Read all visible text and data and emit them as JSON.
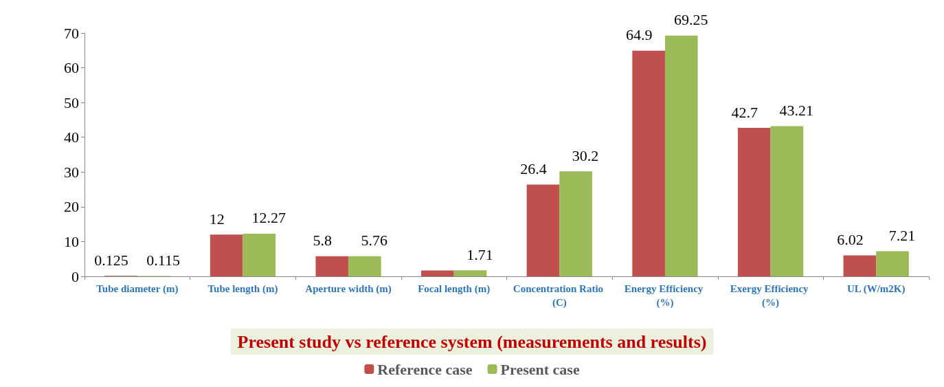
{
  "chart_data": {
    "type": "bar",
    "title": "Present study vs reference system (measurements and results)",
    "categories": [
      "Tube diameter (m)",
      "Tube length (m)",
      "Aperture width (m)",
      "Focal length (m)",
      "Concentration Ratio (C)",
      "Energy Efficiency (%)",
      "Exergy Efficiency (%)",
      "UL (W/m2K)"
    ],
    "series": [
      {
        "name": "Reference case",
        "color": "#c0504d",
        "values": [
          0.125,
          12,
          5.8,
          1.7,
          26.4,
          64.9,
          42.7,
          6.02
        ],
        "value_labels": [
          "0.125",
          "12",
          "5.8",
          null,
          "26.4",
          "64.9",
          "42.7",
          "6.02"
        ]
      },
      {
        "name": "Present case",
        "color": "#9bbb59",
        "values": [
          0.115,
          12.27,
          5.76,
          1.71,
          30.2,
          69.25,
          43.21,
          7.21
        ],
        "value_labels": [
          "0.115",
          "12.27",
          "5.76",
          "1.71",
          "30.2",
          "69.25",
          "43.21",
          "7.21"
        ]
      }
    ],
    "ylim": [
      0,
      70
    ],
    "yticks": [
      0,
      10,
      20,
      30,
      40,
      50,
      60,
      70
    ],
    "grid": false,
    "legend": "bottom"
  }
}
